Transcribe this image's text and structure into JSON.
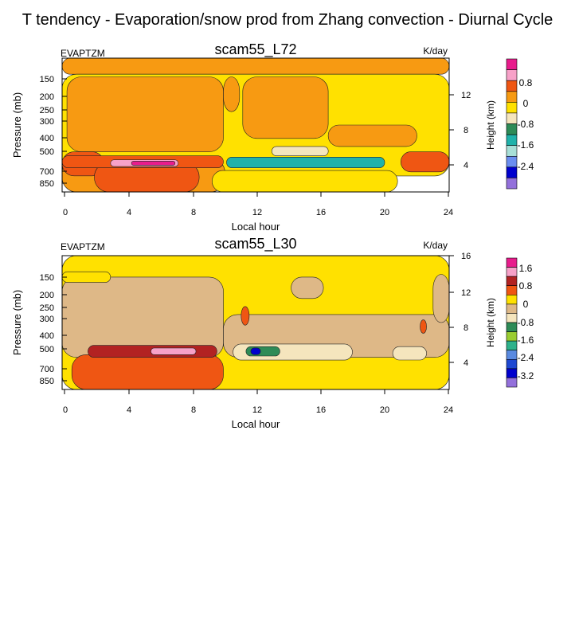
{
  "page_title": "T tendency - Evaporation/snow prod from Zhang convection - Diurnal Cycle",
  "chart_data": [
    {
      "type": "heatmap",
      "title": "scam55_L72",
      "left_label": "EVAPTZM",
      "right_label": "K/day",
      "xlabel": "Local hour",
      "ylabel": "Pressure (mb)",
      "y2label": "Height (km)",
      "xlim": [
        0,
        24
      ],
      "xticks": [
        "0",
        "4",
        "8",
        "12",
        "16",
        "20",
        "24"
      ],
      "yticks": [
        "150",
        "200",
        "250",
        "300",
        "400",
        "500",
        "700",
        "850"
      ],
      "y2ticks": [
        "4",
        "8",
        "12"
      ],
      "colorbar_labels": [
        "0.8",
        "0",
        "-0.8",
        "-1.6",
        "-2.4"
      ],
      "colorbar_colors": [
        "#e81c8c",
        "#f7a1c8",
        "#ef5613",
        "#f79a12",
        "#ffe100",
        "#f5e5bd",
        "#2e8b57",
        "#20b2aa",
        "#a8dfd7",
        "#6b8ef0",
        "#0000cd",
        "#9370db"
      ],
      "regions": [
        {
          "x0": 0,
          "x1": 24,
          "y0": 0.0,
          "y1": 0.12,
          "color": "#f79a12"
        },
        {
          "x0": 0,
          "x1": 24,
          "y0": 0.12,
          "y1": 0.88,
          "color": "#ffe100"
        },
        {
          "x0": 0.3,
          "x1": 10.0,
          "y0": 0.14,
          "y1": 0.7,
          "color": "#f79a12"
        },
        {
          "x0": 10.0,
          "x1": 11.0,
          "y0": 0.14,
          "y1": 0.4,
          "color": "#f79a12"
        },
        {
          "x0": 11.2,
          "x1": 16.5,
          "y0": 0.14,
          "y1": 0.6,
          "color": "#f79a12"
        },
        {
          "x0": 16.5,
          "x1": 22.0,
          "y0": 0.5,
          "y1": 0.66,
          "color": "#f79a12"
        },
        {
          "x0": 0,
          "x1": 10.1,
          "y0": 0.75,
          "y1": 1.0,
          "color": "#f79a12"
        },
        {
          "x0": 0,
          "x1": 2.6,
          "y0": 0.7,
          "y1": 0.88,
          "color": "#ef5613"
        },
        {
          "x0": 2.0,
          "x1": 8.5,
          "y0": 0.78,
          "y1": 1.0,
          "color": "#ef5613"
        },
        {
          "x0": 0,
          "x1": 10.0,
          "y0": 0.73,
          "y1": 0.82,
          "color": "#ef5613"
        },
        {
          "x0": 3.0,
          "x1": 7.2,
          "y0": 0.76,
          "y1": 0.81,
          "color": "#f7a1c8"
        },
        {
          "x0": 4.3,
          "x1": 7.0,
          "y0": 0.77,
          "y1": 0.8,
          "color": "#e81c8c"
        },
        {
          "x0": 10.2,
          "x1": 20.0,
          "y0": 0.74,
          "y1": 0.82,
          "color": "#20b2aa"
        },
        {
          "x0": 13.0,
          "x1": 16.5,
          "y0": 0.66,
          "y1": 0.73,
          "color": "#f5e5bd"
        },
        {
          "x0": 21.0,
          "x1": 24.0,
          "y0": 0.7,
          "y1": 0.85,
          "color": "#ef5613"
        },
        {
          "x0": 9.3,
          "x1": 20.8,
          "y0": 0.84,
          "y1": 1.0,
          "color": "#ffe100"
        }
      ]
    },
    {
      "type": "heatmap",
      "title": "scam55_L30",
      "left_label": "EVAPTZM",
      "right_label": "K/day",
      "xlabel": "Local hour",
      "ylabel": "Pressure (mb)",
      "y2label": "Height (km)",
      "xlim": [
        0,
        24
      ],
      "xticks": [
        "0",
        "4",
        "8",
        "12",
        "16",
        "20",
        "24"
      ],
      "yticks": [
        "150",
        "200",
        "250",
        "300",
        "400",
        "500",
        "700",
        "850"
      ],
      "y2ticks": [
        "4",
        "8",
        "12",
        "16"
      ],
      "colorbar_labels": [
        "1.6",
        "0.8",
        "0",
        "-0.8",
        "-1.6",
        "-2.4",
        "-3.2"
      ],
      "colorbar_colors": [
        "#e81c8c",
        "#f7a1c8",
        "#b22222",
        "#ef5613",
        "#ffe100",
        "#deb887",
        "#f5e5bd",
        "#2e8b57",
        "#9acd32",
        "#2eb28b",
        "#5a8ae0",
        "#1e48d2",
        "#0000cd",
        "#9370db"
      ],
      "regions": [
        {
          "x0": 0,
          "x1": 24,
          "y0": 0.0,
          "y1": 1.0,
          "color": "#ffe100"
        },
        {
          "x0": 0,
          "x1": 10.0,
          "y0": 0.16,
          "y1": 0.76,
          "color": "#deb887"
        },
        {
          "x0": 0,
          "x1": 3.0,
          "y0": 0.12,
          "y1": 0.2,
          "color": "#ffe100"
        },
        {
          "x0": 10.0,
          "x1": 24.0,
          "y0": 0.44,
          "y1": 0.76,
          "color": "#deb887"
        },
        {
          "x0": 14.2,
          "x1": 16.2,
          "y0": 0.16,
          "y1": 0.32,
          "color": "#deb887"
        },
        {
          "x0": 23.0,
          "x1": 24.0,
          "y0": 0.14,
          "y1": 0.5,
          "color": "#deb887"
        },
        {
          "x0": 10.6,
          "x1": 18.0,
          "y0": 0.66,
          "y1": 0.78,
          "color": "#f5e5bd"
        },
        {
          "x0": 11.4,
          "x1": 13.5,
          "y0": 0.68,
          "y1": 0.75,
          "color": "#2e8b57"
        },
        {
          "x0": 11.7,
          "x1": 12.3,
          "y0": 0.69,
          "y1": 0.74,
          "color": "#0000cd"
        },
        {
          "x0": 20.5,
          "x1": 22.6,
          "y0": 0.68,
          "y1": 0.78,
          "color": "#f5e5bd"
        },
        {
          "x0": 0.6,
          "x1": 10.0,
          "y0": 0.74,
          "y1": 1.0,
          "color": "#ef5613"
        },
        {
          "x0": 1.6,
          "x1": 9.6,
          "y0": 0.67,
          "y1": 0.76,
          "color": "#b22222"
        },
        {
          "x0": 5.5,
          "x1": 8.3,
          "y0": 0.69,
          "y1": 0.74,
          "color": "#f7a1c8"
        },
        {
          "x0": 11.1,
          "x1": 11.6,
          "y0": 0.38,
          "y1": 0.52,
          "color": "#ef5613"
        },
        {
          "x0": 22.2,
          "x1": 22.6,
          "y0": 0.48,
          "y1": 0.58,
          "color": "#ef5613"
        }
      ]
    }
  ]
}
